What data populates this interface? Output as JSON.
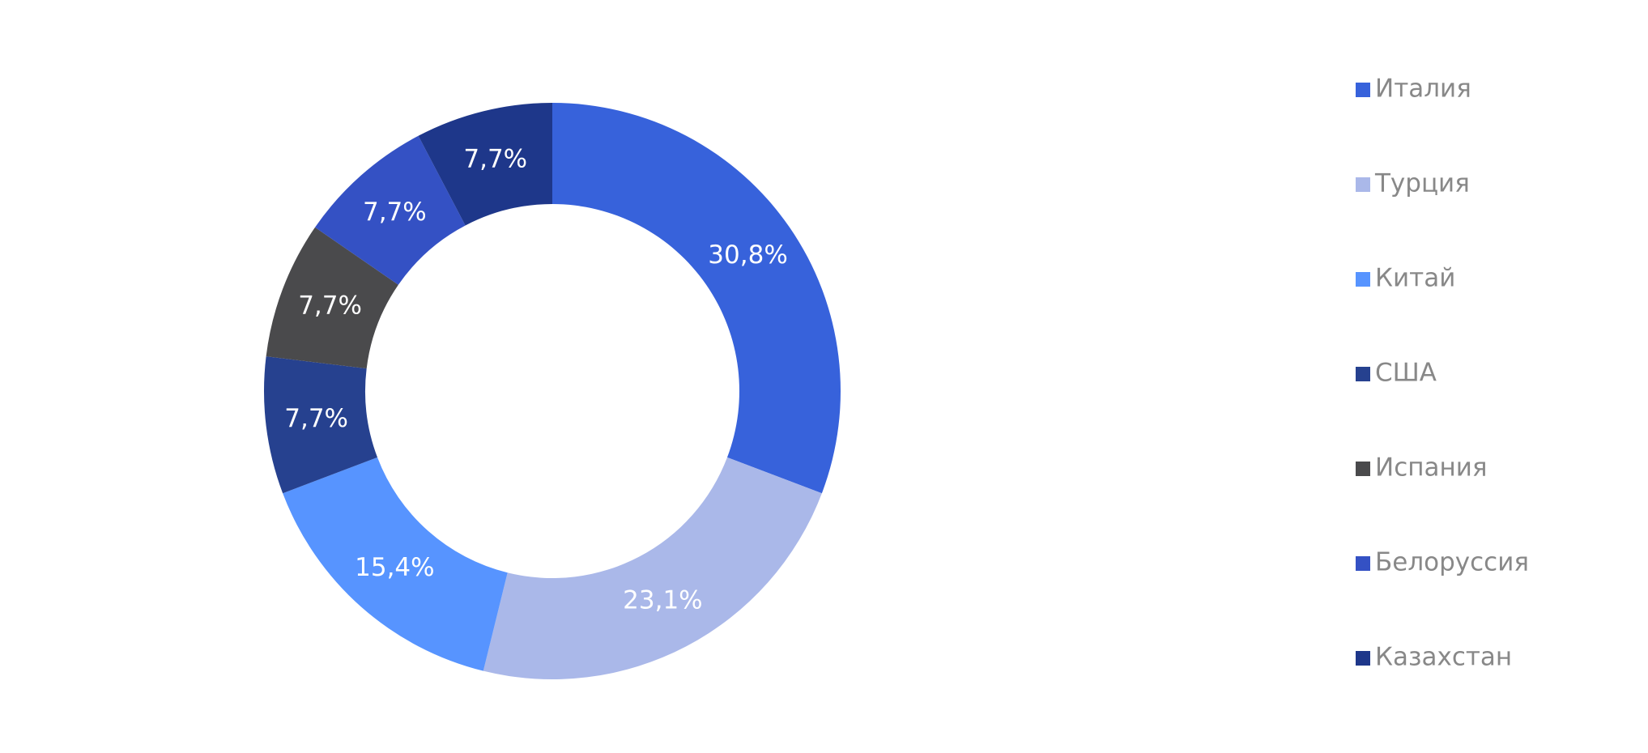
{
  "chart_data": {
    "type": "donut",
    "categories": [
      "Италия",
      "Турция",
      "Китай",
      "США",
      "Испания",
      "Белоруссия",
      "Казахстан"
    ],
    "values": [
      30.8,
      23.1,
      15.4,
      7.7,
      7.7,
      7.7,
      7.7
    ],
    "value_labels": [
      "30,8%",
      "23,1%",
      "15,4%",
      "7,7%",
      "7,7%",
      "7,7%",
      "7,7%"
    ],
    "colors": [
      "#3762db",
      "#aab8e9",
      "#5794ff",
      "#26418f",
      "#4a4a4c",
      "#3451c4",
      "#1e378a"
    ],
    "legend": "right"
  }
}
